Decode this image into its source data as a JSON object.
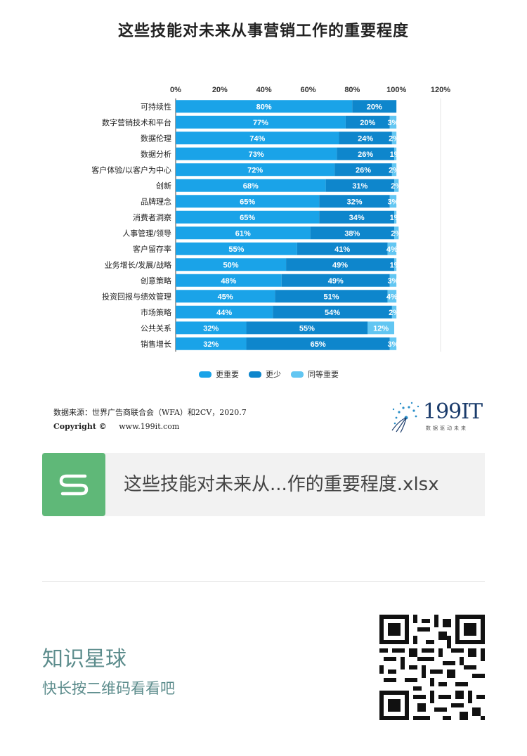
{
  "page": {
    "title": "这些技能对未来从事营销工作的重要程度"
  },
  "chart_data": {
    "type": "bar",
    "orientation": "horizontal",
    "stacked": true,
    "title": "这些技能对未来从事营销工作的重要程度",
    "xlim": [
      0,
      120
    ],
    "x_ticks": [
      "0%",
      "20%",
      "40%",
      "60%",
      "80%",
      "100%",
      "120%"
    ],
    "categories": [
      "可持续性",
      "数字营销技术和平台",
      "数据伦理",
      "数据分析",
      "客户体验/以客户为中心",
      "创新",
      "品牌理念",
      "消费者洞察",
      "人事管理/领导",
      "客户留存率",
      "业务增长/发展/战略",
      "创意策略",
      "投资回报与绩效管理",
      "市场策略",
      "公共关系",
      "销售增长"
    ],
    "series": [
      {
        "name": "更重要",
        "color": "#1aa3e8",
        "values": [
          80,
          77,
          74,
          73,
          72,
          68,
          65,
          65,
          61,
          55,
          50,
          48,
          45,
          44,
          32,
          32
        ]
      },
      {
        "name": "更少",
        "color": "#0e86cc",
        "values": [
          20,
          20,
          24,
          26,
          26,
          31,
          32,
          34,
          38,
          41,
          49,
          49,
          51,
          54,
          55,
          65
        ]
      },
      {
        "name": "同等重要",
        "color": "#62c6f2",
        "values": [
          0,
          3,
          2,
          1,
          2,
          2,
          3,
          1,
          2,
          4,
          1,
          3,
          4,
          2,
          12,
          3
        ]
      }
    ],
    "data_labels": [
      [
        "80%",
        "20%",
        ""
      ],
      [
        "77%",
        "20%",
        "3%"
      ],
      [
        "74%",
        "24%",
        "2%"
      ],
      [
        "73%",
        "26%",
        "1%"
      ],
      [
        "72%",
        "26%",
        "2%"
      ],
      [
        "68%",
        "31%",
        "2%"
      ],
      [
        "65%",
        "32%",
        "3%"
      ],
      [
        "65%",
        "34%",
        "1%"
      ],
      [
        "61%",
        "38%",
        "2%"
      ],
      [
        "55%",
        "41%",
        "4%"
      ],
      [
        "50%",
        "49%",
        "1%"
      ],
      [
        "48%",
        "49%",
        "3%"
      ],
      [
        "45%",
        "51%",
        "4%"
      ],
      [
        "44%",
        "54%",
        "2%"
      ],
      [
        "32%",
        "55%",
        "12%"
      ],
      [
        "32%",
        "65%",
        "3%"
      ]
    ],
    "legend_position": "bottom",
    "grid": false
  },
  "legend": {
    "items": [
      {
        "label": "更重要",
        "color": "#1aa3e8"
      },
      {
        "label": "更少",
        "color": "#0e86cc"
      },
      {
        "label": "同等重要",
        "color": "#62c6f2"
      }
    ]
  },
  "footer": {
    "source": "数据来源：世界广告商联合会（WFA）和2CV，2020.7",
    "copyright_label": "Copyright ©",
    "website": "www.199it.com",
    "logo_text": "199IT",
    "logo_sub": "数据驱动未来"
  },
  "file_card": {
    "icon_letter": "S",
    "file_name": "这些技能对未来从...作的重要程度.xlsx"
  },
  "planet": {
    "title": "知识星球",
    "subtitle": "快长按二维码看看吧"
  }
}
